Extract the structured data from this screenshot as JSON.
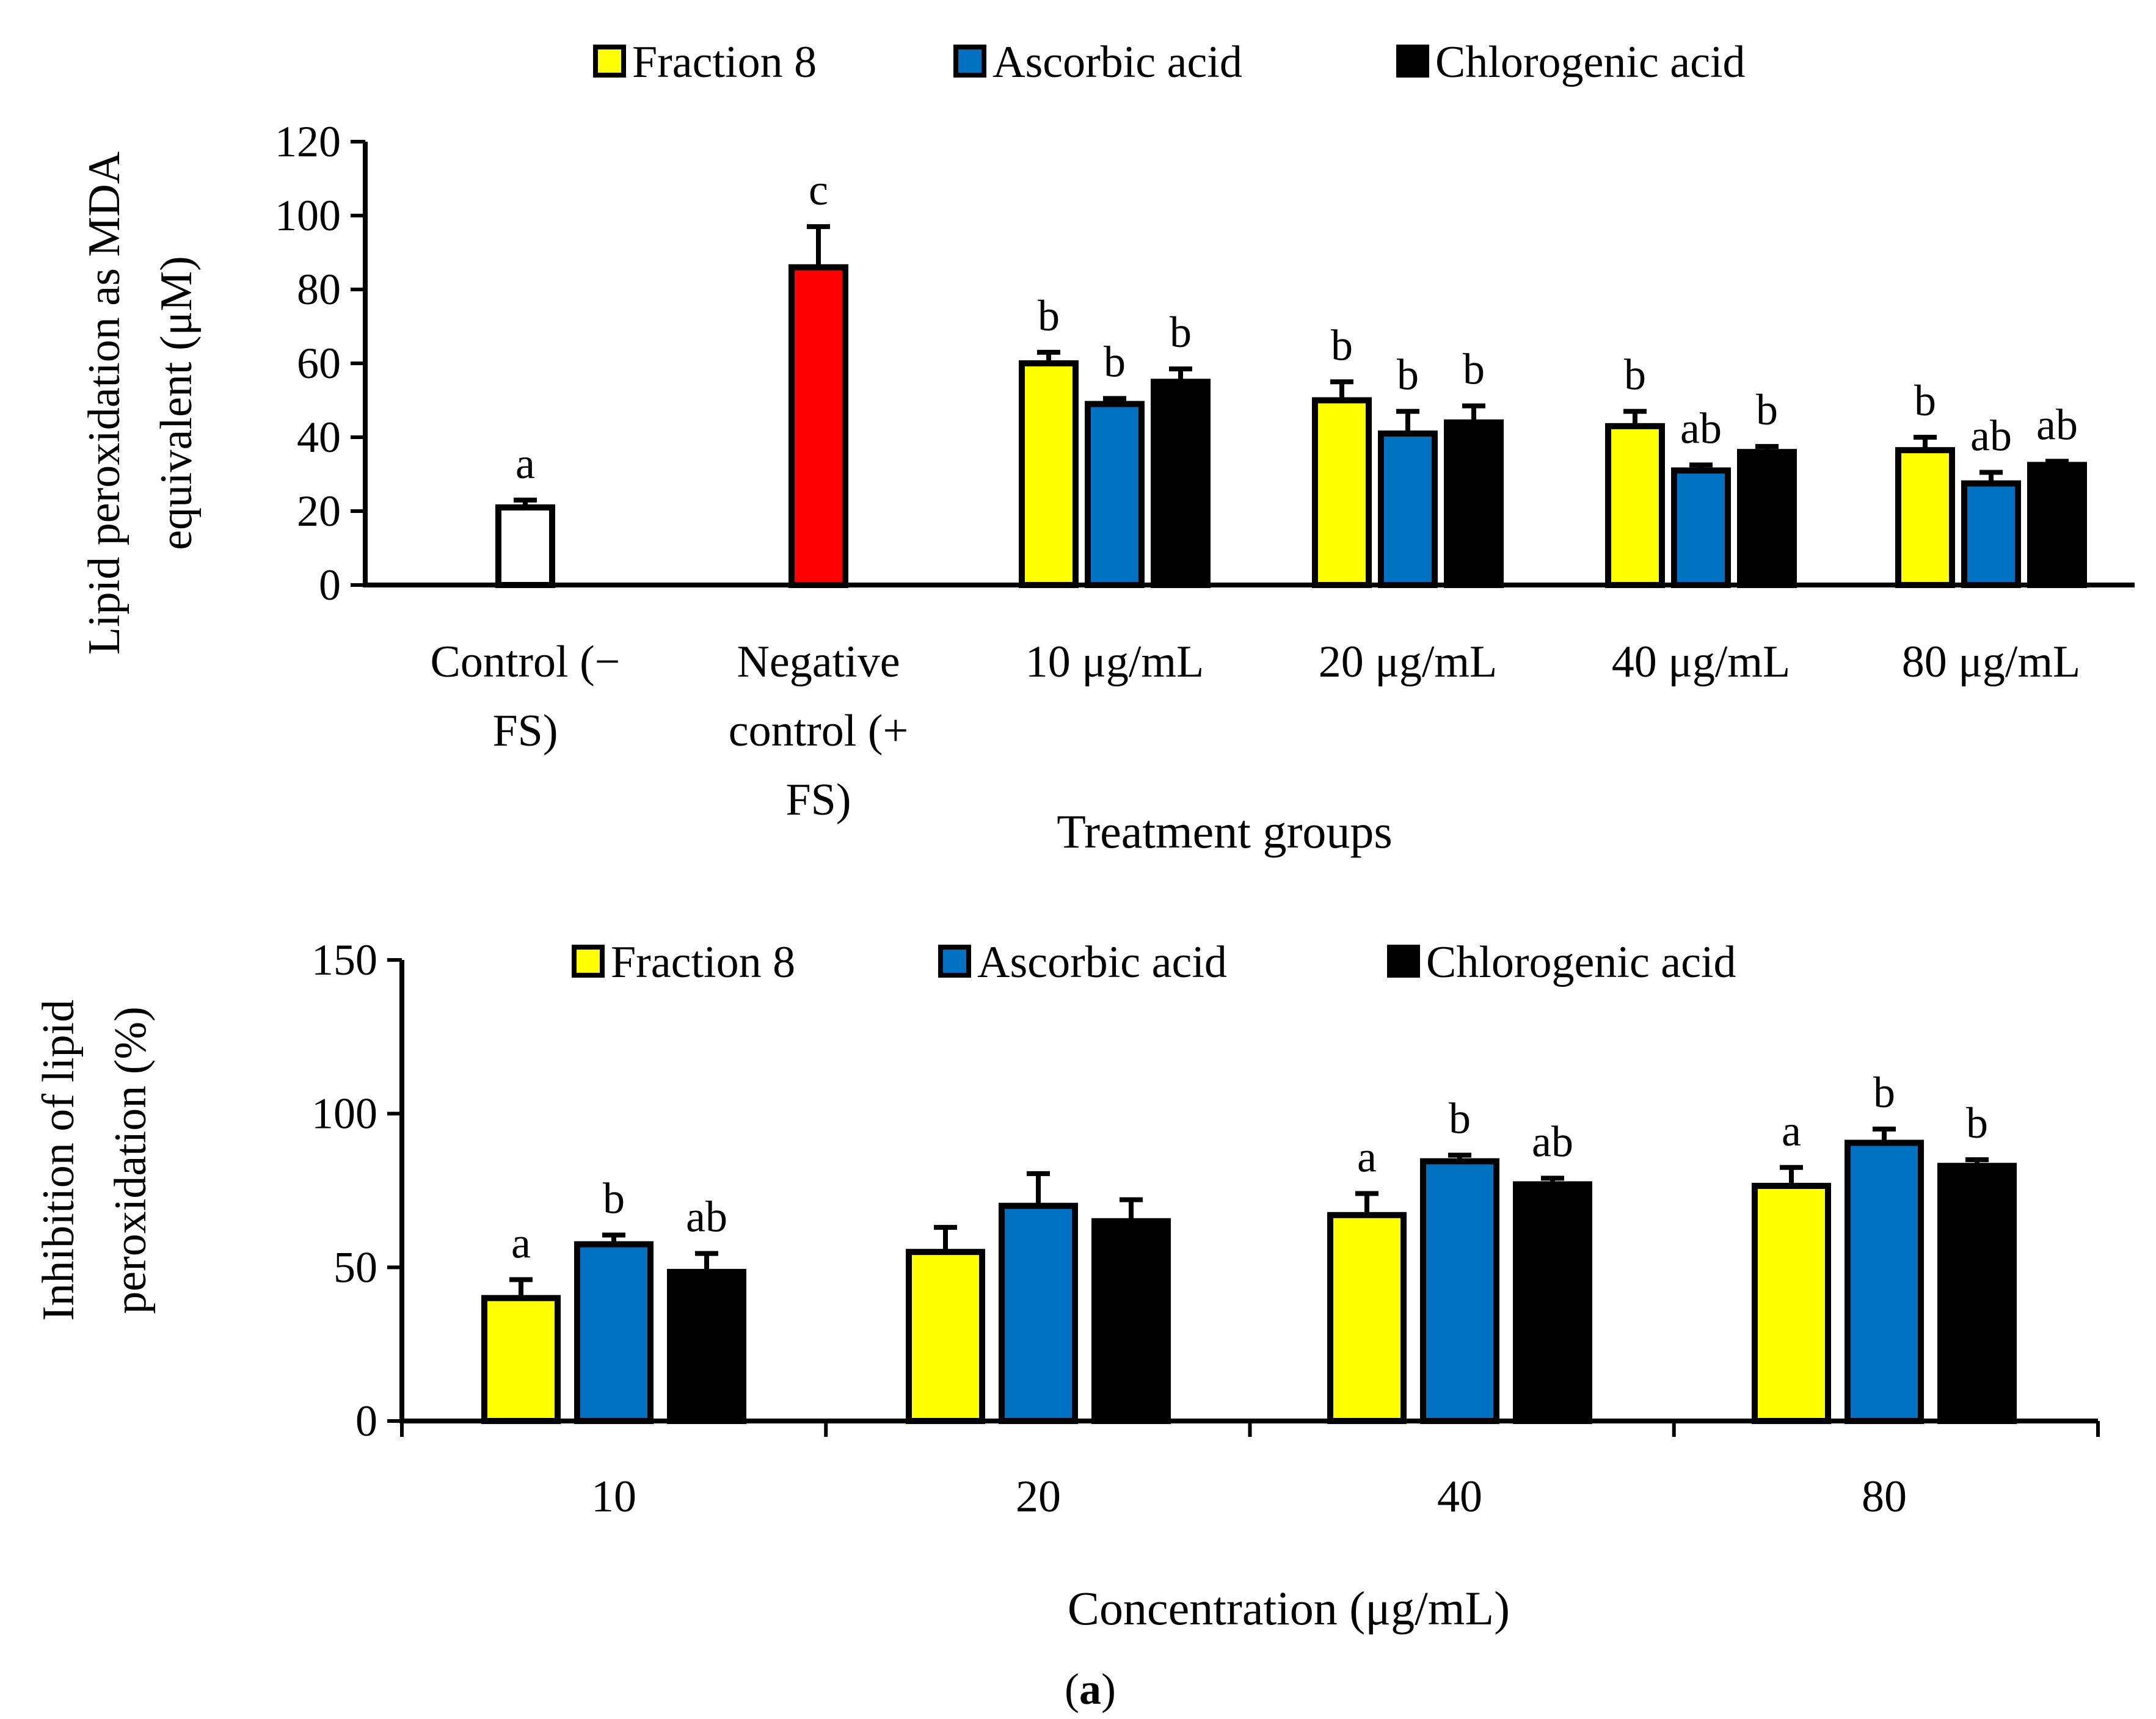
{
  "colors": {
    "fraction8": "#ffff00",
    "ascorbic": "#0070c0",
    "chlorogenic": "#000000",
    "control": "#ffffff",
    "negative": "#ff0000",
    "stroke": "#000000"
  },
  "panel_label": {
    "prefix": "(",
    "letter": "a",
    "suffix": ")"
  },
  "chart_data": [
    {
      "type": "bar",
      "id": "top",
      "title": "",
      "ylabel_lines": [
        "Lipid peroxidation as MDA",
        "equivalent (μM)"
      ],
      "xlabel": "Treatment groups",
      "ylim": [
        0,
        120
      ],
      "yticks": [
        0,
        20,
        40,
        60,
        80,
        100,
        120
      ],
      "legend": {
        "placement": "top-center",
        "items": [
          {
            "label": "Fraction 8",
            "color": "#ffff00"
          },
          {
            "label": "Ascorbic acid",
            "color": "#0070c0"
          },
          {
            "label": "Chlorogenic acid",
            "color": "#000000"
          }
        ]
      },
      "groups": [
        {
          "label_lines": [
            "Control (−",
            "FS)"
          ],
          "bars": [
            {
              "series": "Control (−FS)",
              "value": 21,
              "error": 2,
              "sig": "a",
              "color": "#ffffff"
            }
          ]
        },
        {
          "label_lines": [
            "Negative",
            "control (+",
            "FS)"
          ],
          "bars": [
            {
              "series": "Negative control (+FS)",
              "value": 86,
              "error": 11,
              "sig": "c",
              "color": "#ff0000"
            }
          ]
        },
        {
          "label_lines": [
            "10 μg/mL"
          ],
          "bars": [
            {
              "series": "Fraction 8",
              "value": 60,
              "error": 3,
              "sig": "b",
              "color": "#ffff00"
            },
            {
              "series": "Ascorbic acid",
              "value": 49,
              "error": 1.5,
              "sig": "b",
              "color": "#0070c0"
            },
            {
              "series": "Chlorogenic acid",
              "value": 55,
              "error": 3.5,
              "sig": "b",
              "color": "#000000"
            }
          ]
        },
        {
          "label_lines": [
            "20 μg/mL"
          ],
          "bars": [
            {
              "series": "Fraction 8",
              "value": 50,
              "error": 5,
              "sig": "b",
              "color": "#ffff00"
            },
            {
              "series": "Ascorbic acid",
              "value": 41,
              "error": 6,
              "sig": "b",
              "color": "#0070c0"
            },
            {
              "series": "Chlorogenic acid",
              "value": 44,
              "error": 4.5,
              "sig": "b",
              "color": "#000000"
            }
          ]
        },
        {
          "label_lines": [
            "40 μg/mL"
          ],
          "bars": [
            {
              "series": "Fraction 8",
              "value": 43,
              "error": 4,
              "sig": "b",
              "color": "#ffff00"
            },
            {
              "series": "Ascorbic acid",
              "value": 31,
              "error": 1.5,
              "sig": "ab",
              "color": "#0070c0"
            },
            {
              "series": "Chlorogenic acid",
              "value": 36,
              "error": 1.5,
              "sig": "b",
              "color": "#000000"
            }
          ]
        },
        {
          "label_lines": [
            "80 μg/mL"
          ],
          "bars": [
            {
              "series": "Fraction 8",
              "value": 36.5,
              "error": 3.5,
              "sig": "b",
              "color": "#ffff00"
            },
            {
              "series": "Ascorbic acid",
              "value": 27.5,
              "error": 3,
              "sig": "ab",
              "color": "#0070c0"
            },
            {
              "series": "Chlorogenic acid",
              "value": 32.5,
              "error": 1,
              "sig": "ab",
              "color": "#000000"
            }
          ]
        }
      ]
    },
    {
      "type": "bar",
      "id": "bottom",
      "title": "",
      "ylabel_lines": [
        "Inhibition of lipid",
        "peroxidation (%)"
      ],
      "xlabel": "Concentration (μg/mL)",
      "ylim": [
        0,
        150
      ],
      "yticks": [
        0,
        50,
        100,
        150
      ],
      "legend": {
        "placement": "top-center",
        "items": [
          {
            "label": "Fraction 8",
            "color": "#ffff00"
          },
          {
            "label": "Ascorbic acid",
            "color": "#0070c0"
          },
          {
            "label": "Chlorogenic acid",
            "color": "#000000"
          }
        ]
      },
      "groups": [
        {
          "label_lines": [
            "10"
          ],
          "bars": [
            {
              "series": "Fraction 8",
              "value": 40,
              "error": 6,
              "sig": "a",
              "color": "#ffff00"
            },
            {
              "series": "Ascorbic acid",
              "value": 57.5,
              "error": 3,
              "sig": "b",
              "color": "#0070c0"
            },
            {
              "series": "Chlorogenic acid",
              "value": 48.5,
              "error": 6,
              "sig": "ab",
              "color": "#000000"
            }
          ]
        },
        {
          "label_lines": [
            "20"
          ],
          "bars": [
            {
              "series": "Fraction 8",
              "value": 55,
              "error": 8,
              "sig": "",
              "color": "#ffff00"
            },
            {
              "series": "Ascorbic acid",
              "value": 70,
              "error": 10.5,
              "sig": "",
              "color": "#0070c0"
            },
            {
              "series": "Chlorogenic acid",
              "value": 65,
              "error": 7,
              "sig": "",
              "color": "#000000"
            }
          ]
        },
        {
          "label_lines": [
            "40"
          ],
          "bars": [
            {
              "series": "Fraction 8",
              "value": 67,
              "error": 7,
              "sig": "a",
              "color": "#ffff00"
            },
            {
              "series": "Ascorbic acid",
              "value": 84.5,
              "error": 2,
              "sig": "b",
              "color": "#0070c0"
            },
            {
              "series": "Chlorogenic acid",
              "value": 77,
              "error": 2,
              "sig": "ab",
              "color": "#000000"
            }
          ]
        },
        {
          "label_lines": [
            "80"
          ],
          "bars": [
            {
              "series": "Fraction 8",
              "value": 76.5,
              "error": 6,
              "sig": "a",
              "color": "#ffff00"
            },
            {
              "series": "Ascorbic acid",
              "value": 90.5,
              "error": 4.5,
              "sig": "b",
              "color": "#0070c0"
            },
            {
              "series": "Chlorogenic acid",
              "value": 83,
              "error": 2,
              "sig": "b",
              "color": "#000000"
            }
          ]
        }
      ]
    }
  ]
}
